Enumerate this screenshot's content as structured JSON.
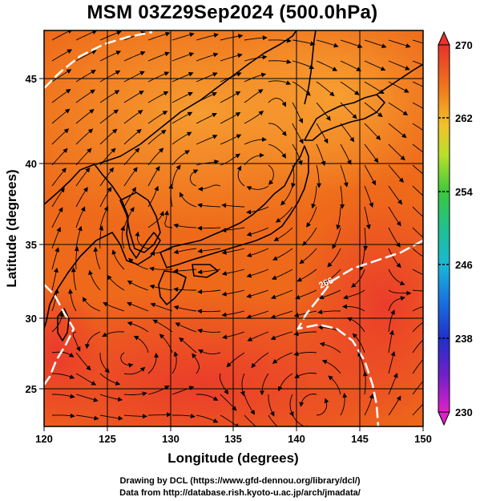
{
  "title": "MSM 03Z29Sep2024 (500.0hPa)",
  "xlabel": "Longitude (degrees)",
  "ylabel": "Latitude  (degrees)",
  "xticks": [
    "120",
    "125",
    "130",
    "135",
    "140",
    "145",
    "150"
  ],
  "yticks": [
    "25",
    "30",
    "35",
    "40",
    "45"
  ],
  "colorbar": {
    "ticks": [
      "270",
      "262",
      "254",
      "246",
      "238",
      "230"
    ],
    "min": 230,
    "max": 270
  },
  "contour": {
    "label": "266"
  },
  "credits": [
    "Drawing by DCL (https://www.gfd-dennou.org/library/dcl/)",
    "Data from http://database.rish.kyoto-u.ac.jp/arch/jmadata/"
  ],
  "colors": {
    "background_field": "#ee6a1a",
    "warm": "#e8322a",
    "cool": "#f7a532",
    "contour": "#ffffff",
    "coast": "#000000"
  }
}
